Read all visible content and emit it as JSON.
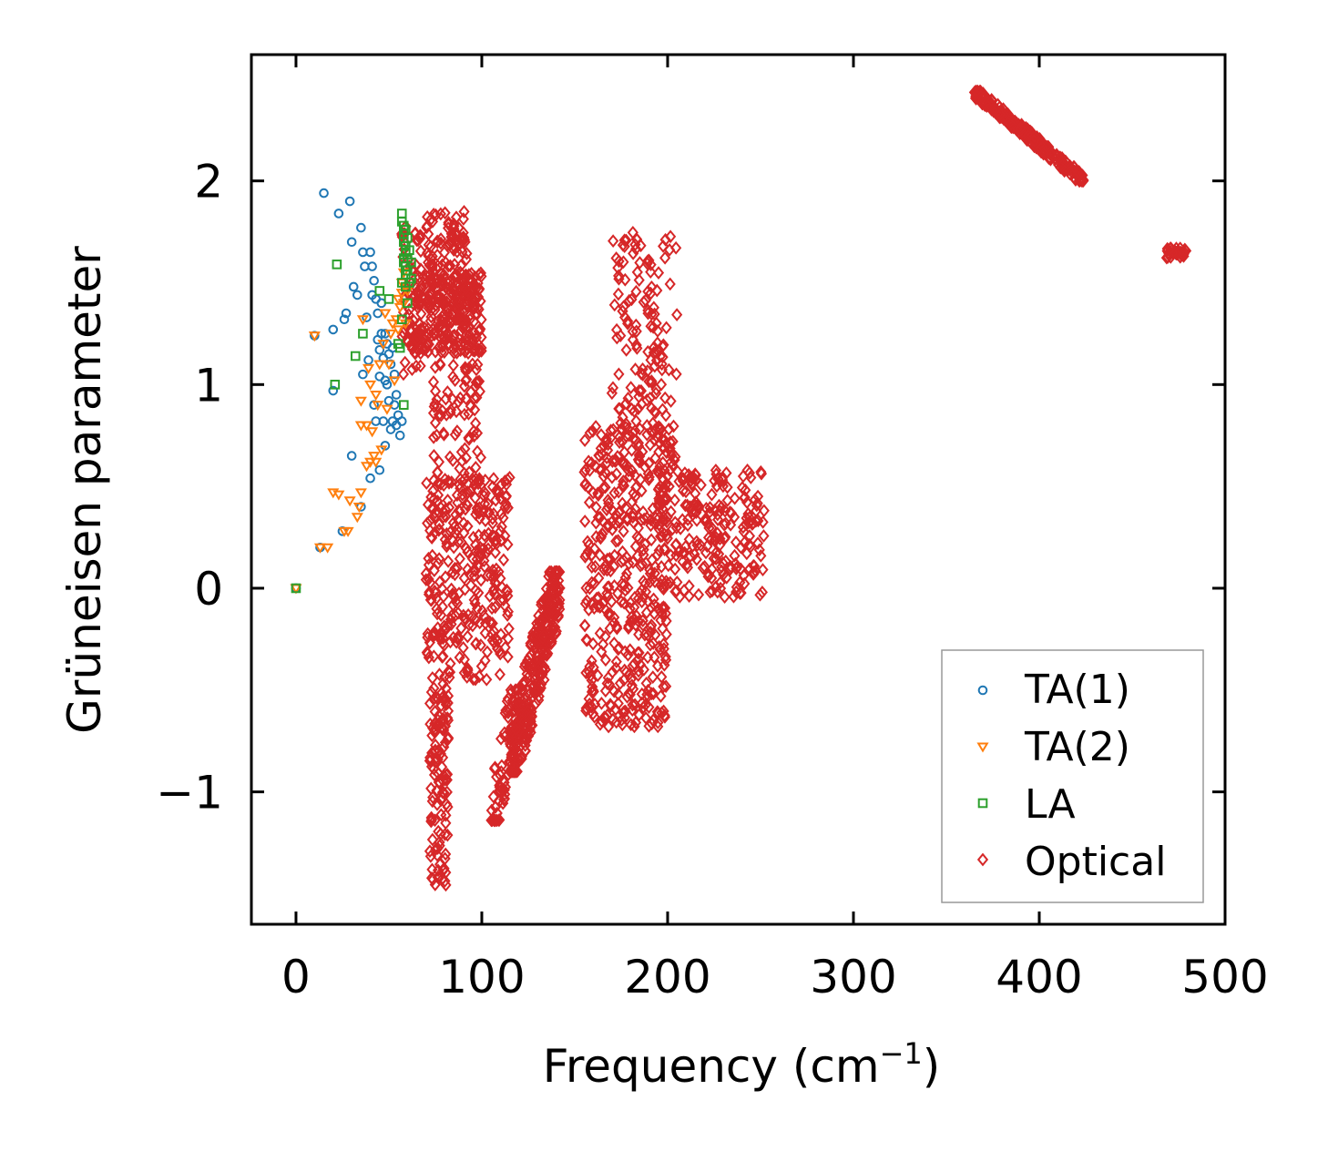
{
  "chart_data": {
    "type": "scatter",
    "title": "",
    "xlabel": "Frequency (cm",
    "xlabel_sup": "−1",
    "xlabel_close": ")",
    "ylabel": "Grüneisen parameter",
    "xlim": [
      -24,
      500
    ],
    "ylim": [
      -1.65,
      2.62
    ],
    "x_ticks": [
      0,
      100,
      200,
      300,
      400,
      500
    ],
    "x_tick_labels": [
      "0",
      "100",
      "200",
      "300",
      "400",
      "500"
    ],
    "y_ticks": [
      -1,
      0,
      1,
      2
    ],
    "y_tick_labels": [
      "−1",
      "0",
      "1",
      "2"
    ],
    "legend_position": "lower-right",
    "series": [
      {
        "name": "TA(1)",
        "marker": "circle",
        "color": "#1f77b4",
        "points": [
          [
            0,
            0
          ],
          [
            10,
            1.24
          ],
          [
            13,
            0.2
          ],
          [
            15,
            1.94
          ],
          [
            20,
            0.97
          ],
          [
            20,
            1.27
          ],
          [
            23,
            1.84
          ],
          [
            25,
            0.28
          ],
          [
            26,
            1.32
          ],
          [
            27,
            1.35
          ],
          [
            29,
            1.9
          ],
          [
            30,
            0.65
          ],
          [
            30,
            1.7
          ],
          [
            31,
            1.48
          ],
          [
            33,
            1.44
          ],
          [
            35,
            0.4
          ],
          [
            35,
            1.77
          ],
          [
            36,
            1.65
          ],
          [
            36,
            1.05
          ],
          [
            37,
            1.58
          ],
          [
            38,
            1.33
          ],
          [
            39,
            1.12
          ],
          [
            40,
            1.65
          ],
          [
            40,
            0.54
          ],
          [
            41,
            1.58
          ],
          [
            41,
            1.44
          ],
          [
            42,
            1.51
          ],
          [
            42,
            0.9
          ],
          [
            43,
            1.42
          ],
          [
            43,
            0.82
          ],
          [
            44,
            1.35
          ],
          [
            44,
            1.22
          ],
          [
            45,
            1.04
          ],
          [
            45,
            0.58
          ],
          [
            45,
            1.17
          ],
          [
            46,
            1.4
          ],
          [
            46,
            1.25
          ],
          [
            47,
            0.82
          ],
          [
            47,
            1.13
          ],
          [
            48,
            1.02
          ],
          [
            48,
            0.7
          ],
          [
            48,
            1.25
          ],
          [
            49,
            1.2
          ],
          [
            49,
            1.0
          ],
          [
            50,
            0.92
          ],
          [
            50,
            1.15
          ],
          [
            51,
            0.78
          ],
          [
            51,
            1.1
          ],
          [
            52,
            1.18
          ],
          [
            52,
            0.82
          ],
          [
            53,
            0.9
          ],
          [
            53,
            1.05
          ],
          [
            54,
            0.8
          ],
          [
            54,
            0.95
          ],
          [
            55,
            0.85
          ],
          [
            56,
            0.75
          ],
          [
            57,
            0.82
          ]
        ]
      },
      {
        "name": "TA(2)",
        "marker": "triangle-down",
        "color": "#ff7f0e",
        "points": [
          [
            0,
            0
          ],
          [
            10,
            1.24
          ],
          [
            13,
            0.2
          ],
          [
            17,
            0.2
          ],
          [
            20,
            0.47
          ],
          [
            23,
            0.46
          ],
          [
            26,
            0.28
          ],
          [
            28,
            0.28
          ],
          [
            29,
            0.43
          ],
          [
            33,
            0.35
          ],
          [
            34,
            0.4
          ],
          [
            35,
            0.47
          ],
          [
            35,
            0.8
          ],
          [
            35,
            0.92
          ],
          [
            36,
            1.32
          ],
          [
            38,
            0.8
          ],
          [
            38,
            0.6
          ],
          [
            39,
            1.08
          ],
          [
            40,
            0.62
          ],
          [
            40,
            1.0
          ],
          [
            41,
            0.77
          ],
          [
            42,
            0.65
          ],
          [
            43,
            0.62
          ],
          [
            43,
            0.95
          ],
          [
            44,
            0.9
          ],
          [
            45,
            1.1
          ],
          [
            46,
            0.68
          ],
          [
            47,
            1.2
          ],
          [
            48,
            1.35
          ],
          [
            49,
            0.88
          ],
          [
            50,
            1.1
          ],
          [
            51,
            1.25
          ],
          [
            52,
            1.3
          ],
          [
            53,
            1.02
          ],
          [
            54,
            1.32
          ],
          [
            55,
            1.42
          ],
          [
            55,
            1.27
          ],
          [
            56,
            1.38
          ],
          [
            57,
            1.5
          ],
          [
            57,
            1.45
          ],
          [
            58,
            1.55
          ],
          [
            58,
            1.4
          ],
          [
            59,
            1.3
          ],
          [
            60,
            1.46
          ]
        ]
      },
      {
        "name": "LA",
        "marker": "square",
        "color": "#2ca02c",
        "points": [
          [
            0,
            0
          ],
          [
            21,
            1.0
          ],
          [
            22,
            1.59
          ],
          [
            32,
            1.14
          ],
          [
            36,
            1.25
          ],
          [
            45,
            1.46
          ],
          [
            50,
            1.42
          ],
          [
            55,
            1.2
          ],
          [
            56,
            1.18
          ],
          [
            57,
            1.32
          ],
          [
            57,
            1.84
          ],
          [
            57,
            1.8
          ],
          [
            57,
            1.5
          ],
          [
            58,
            1.78
          ],
          [
            58,
            1.74
          ],
          [
            58,
            1.7
          ],
          [
            58,
            1.62
          ],
          [
            58,
            1.6
          ],
          [
            58,
            0.9
          ],
          [
            59,
            1.76
          ],
          [
            59,
            1.68
          ],
          [
            59,
            1.65
          ],
          [
            59,
            1.58
          ],
          [
            59,
            1.54
          ],
          [
            59,
            1.48
          ],
          [
            60,
            1.72
          ],
          [
            60,
            1.62
          ],
          [
            60,
            1.56
          ],
          [
            60,
            1.4
          ],
          [
            61,
            1.66
          ],
          [
            61,
            1.5
          ],
          [
            62,
            1.6
          ],
          [
            62,
            1.52
          ]
        ]
      },
      {
        "name": "Optical",
        "marker": "diamond",
        "color": "#d62728",
        "clusters": [
          {
            "x_range": [
              57,
              68
            ],
            "y_range": [
              1.05,
              1.8
            ],
            "count": 70
          },
          {
            "x_range": [
              64,
              100
            ],
            "y_range": [
              1.15,
              1.55
            ],
            "count": 240
          },
          {
            "x_range": [
              70,
              92
            ],
            "y_range": [
              1.4,
              1.85
            ],
            "count": 110
          },
          {
            "x_range": [
              74,
              100
            ],
            "y_range": [
              0.5,
              1.2
            ],
            "count": 90
          },
          {
            "x_range": [
              70,
              115
            ],
            "y_range": [
              -0.45,
              0.55
            ],
            "count": 320
          },
          {
            "x_range": [
              72,
              82
            ],
            "y_range": [
              -1.46,
              -0.45
            ],
            "count": 120
          },
          {
            "x_range": [
              105,
              120
            ],
            "y_range": [
              -1.14,
              -0.5
            ],
            "count": 70
          },
          {
            "x_range": [
              115,
              142
            ],
            "y_range": [
              -0.9,
              0.08
            ],
            "count": 330
          },
          {
            "x_range": [
              155,
              200
            ],
            "y_range": [
              -0.68,
              0.8
            ],
            "count": 430
          },
          {
            "x_range": [
              170,
              205
            ],
            "y_range": [
              0.6,
              1.75
            ],
            "count": 160
          },
          {
            "x_range": [
              195,
              252
            ],
            "y_range": [
              -0.05,
              0.58
            ],
            "count": 240
          },
          {
            "x_range": [
              365,
              424
            ],
            "y_range": [
              2.0,
              2.44
            ],
            "count": 260
          },
          {
            "x_range": [
              468,
              479
            ],
            "y_range": [
              1.62,
              1.67
            ],
            "count": 30
          }
        ]
      }
    ]
  }
}
